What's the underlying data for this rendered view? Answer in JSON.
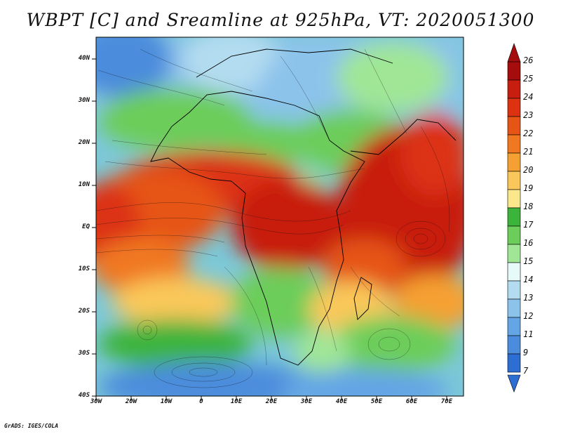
{
  "title": "WBPT [C] and Sreamline at 925hPa, VT: 2020051300",
  "credit": "GrADS: IGES/COLA",
  "y_axis": {
    "labels": [
      "40N",
      "30N",
      "20N",
      "10N",
      "EQ",
      "10S",
      "20S",
      "30S",
      "40S"
    ],
    "values": [
      40,
      30,
      20,
      10,
      0,
      -10,
      -20,
      -30,
      -40
    ]
  },
  "x_axis": {
    "labels": [
      "30W",
      "20W",
      "10W",
      "0",
      "10E",
      "20E",
      "30E",
      "40E",
      "50E",
      "60E",
      "70E"
    ],
    "values": [
      -30,
      -20,
      -10,
      0,
      10,
      20,
      30,
      40,
      50,
      60,
      70
    ]
  },
  "colorbar": {
    "labels": [
      "26",
      "25",
      "24",
      "23",
      "22",
      "21",
      "20",
      "19",
      "18",
      "17",
      "16",
      "15",
      "14",
      "13",
      "12",
      "11",
      "9",
      "7"
    ],
    "colors": [
      "#a50d0d",
      "#c81e0f",
      "#dc3212",
      "#e65516",
      "#f07820",
      "#f5a032",
      "#fac85a",
      "#fbe78c",
      "#3cb43c",
      "#6ccd5a",
      "#a0e696",
      "#e6fafa",
      "#b4dcf0",
      "#8cc3eb",
      "#64a5e6",
      "#4b8cdc",
      "#2d6ed2"
    ],
    "top_arrow_color": "#a50d0d",
    "bottom_arrow_color": "#2d6ed2"
  }
}
